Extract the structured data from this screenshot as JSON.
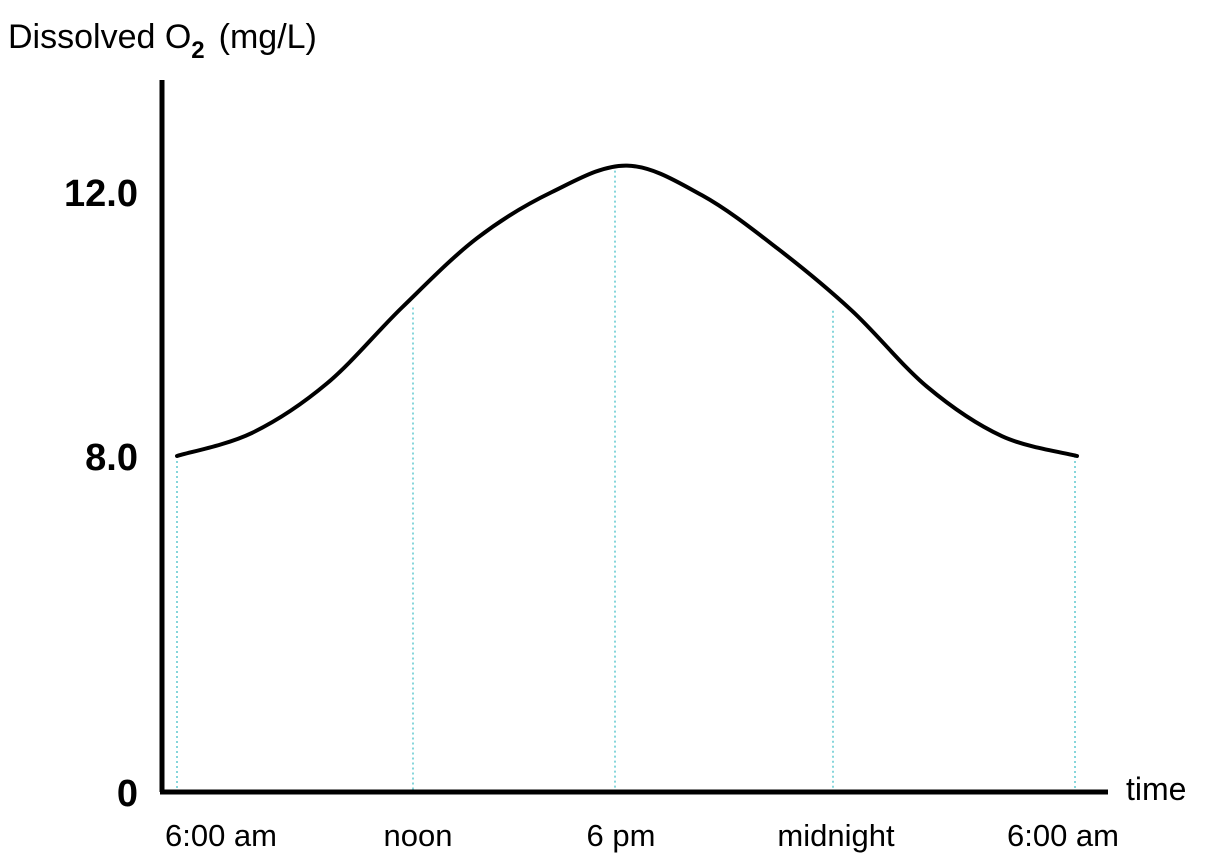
{
  "chart_data": {
    "type": "line",
    "title": "",
    "ylabel": {
      "main": "Dissolved O",
      "subscript": "2",
      "unit": "(mg/L)"
    },
    "xlabel": "time",
    "x_ticks": [
      "6:00 am",
      "noon",
      "6 pm",
      "midnight",
      "6:00 am"
    ],
    "x_tick_hours": [
      0,
      6,
      12,
      18,
      24
    ],
    "y_ticks": [
      "0",
      "8.0",
      "12.0"
    ],
    "y_tick_values": [
      0,
      8.0,
      12.0
    ],
    "ylim": [
      0,
      12.0
    ],
    "xlim": [
      0,
      24
    ],
    "grid": "vertical dotted lines at x ticks",
    "series": [
      {
        "x": [
          0,
          2,
          4,
          6,
          8,
          10,
          12,
          14,
          16,
          18,
          20,
          22,
          24
        ],
        "values": [
          8.0,
          8.35,
          9.1,
          10.25,
          11.3,
          12.0,
          12.4,
          11.95,
          11.15,
          10.2,
          9.05,
          8.3,
          8.0
        ]
      }
    ],
    "colors": {
      "line": "#000000",
      "grid": "#5fc8cf",
      "axis": "#000000"
    }
  }
}
